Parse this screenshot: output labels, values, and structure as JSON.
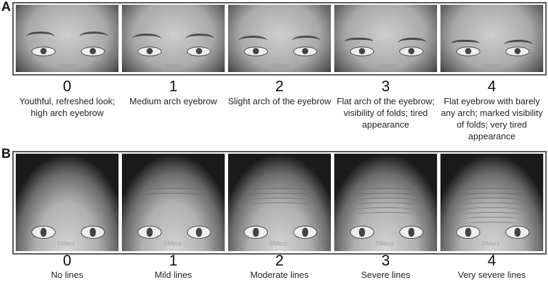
{
  "panels": [
    {
      "label": "A",
      "watermark": "©Merz",
      "items": [
        {
          "score": "0",
          "description": "Youthful, refreshed look; high arch eyebrow"
        },
        {
          "score": "1",
          "description": "Medium arch eyebrow"
        },
        {
          "score": "2",
          "description": "Slight arch of the eyebrow"
        },
        {
          "score": "3",
          "description": "Flat arch of the eyebrow; visibility of folds; tired appearance"
        },
        {
          "score": "4",
          "description": "Flat eyebrow with barely any arch; marked visibility of folds; very tired appearance"
        }
      ]
    },
    {
      "label": "B",
      "watermark": "©Merz",
      "items": [
        {
          "score": "0",
          "description": "No lines"
        },
        {
          "score": "1",
          "description": "Mild lines"
        },
        {
          "score": "2",
          "description": "Moderate lines"
        },
        {
          "score": "3",
          "description": "Severe lines"
        },
        {
          "score": "4",
          "description": "Very severe lines"
        }
      ]
    }
  ]
}
